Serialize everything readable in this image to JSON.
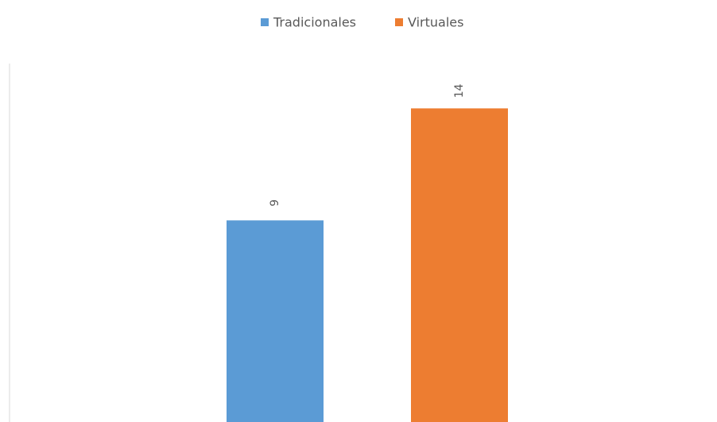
{
  "chart_data": {
    "type": "bar",
    "categories": [
      null
    ],
    "series": [
      {
        "name": "Tradicionales",
        "color": "#5b9bd5",
        "values": [
          9
        ]
      },
      {
        "name": "Virtuales",
        "color": "#ed7d31",
        "values": [
          14
        ]
      }
    ],
    "ylim": [
      0,
      16
    ]
  }
}
